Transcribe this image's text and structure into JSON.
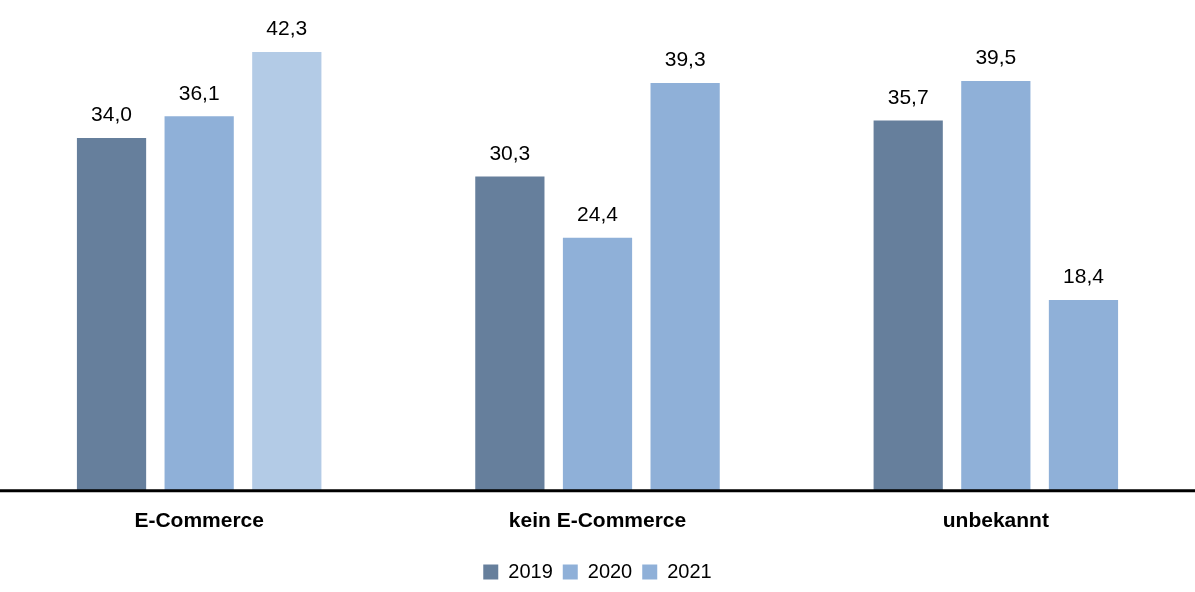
{
  "chart_data": {
    "type": "bar",
    "categories": [
      "E-Commerce",
      "kein E-Commerce",
      "unbekannt"
    ],
    "series": [
      {
        "name": "2019",
        "color": "#667f9c",
        "values": [
          34.0,
          30.3,
          35.7
        ],
        "value_labels": [
          "34,0",
          "30,3",
          "35,7"
        ]
      },
      {
        "name": "2020",
        "color": "#8fb0d8",
        "values": [
          36.1,
          24.4,
          39.5
        ],
        "value_labels": [
          "36,1",
          "24,4",
          "39,5"
        ]
      },
      {
        "name": "2021",
        "color": "#8fb0d8",
        "colors": [
          "#b3cbe6",
          "#8fb0d8",
          "#8fb0d8"
        ],
        "values": [
          42.3,
          39.3,
          18.4
        ],
        "value_labels": [
          "42,3",
          "39,3",
          "18,4"
        ]
      }
    ],
    "legend": "bottom",
    "grid": false
  }
}
